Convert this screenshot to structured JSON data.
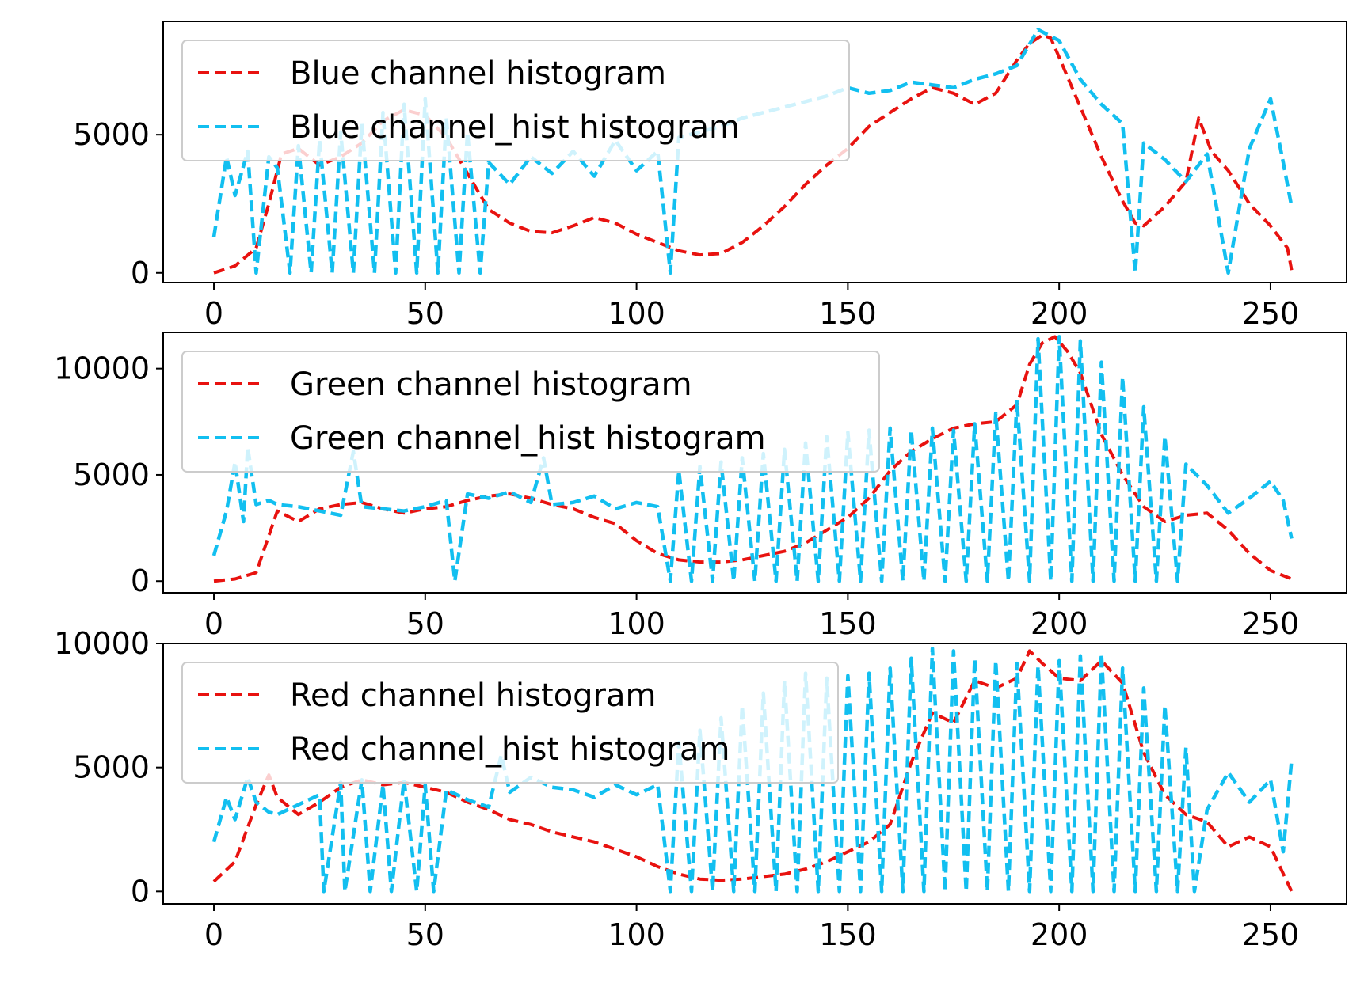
{
  "chart_data": [
    {
      "type": "line",
      "title": "",
      "xlabel": "",
      "ylabel": "",
      "xlim": [
        -12,
        268
      ],
      "ylim": [
        -350,
        9100
      ],
      "xticks": [
        0,
        50,
        100,
        150,
        200,
        250
      ],
      "xtick_labels": [
        "0",
        "50",
        "100",
        "150",
        "200",
        "250"
      ],
      "yticks": [
        0,
        5000
      ],
      "ytick_labels": [
        "0",
        "5000"
      ],
      "grid": false,
      "legend_location": "upper left",
      "series": [
        {
          "name": "Blue channel histogram",
          "color": "#e8120f",
          "style": "dashed",
          "x": [
            0,
            5,
            10,
            13,
            16,
            20,
            25,
            30,
            35,
            40,
            45,
            50,
            55,
            60,
            65,
            70,
            75,
            80,
            85,
            90,
            95,
            100,
            105,
            110,
            115,
            120,
            125,
            130,
            135,
            140,
            145,
            150,
            155,
            160,
            165,
            170,
            175,
            180,
            185,
            190,
            193,
            196,
            198,
            200,
            205,
            210,
            215,
            218,
            220,
            225,
            230,
            233,
            236,
            240,
            245,
            250,
            254,
            255
          ],
          "y": [
            0,
            250,
            900,
            2500,
            4300,
            4500,
            3900,
            4200,
            4700,
            5500,
            5900,
            5700,
            4900,
            3600,
            2300,
            1800,
            1500,
            1450,
            1700,
            2000,
            1800,
            1400,
            1100,
            800,
            650,
            700,
            1100,
            1700,
            2400,
            3200,
            3900,
            4500,
            5300,
            5800,
            6300,
            6700,
            6500,
            6100,
            6500,
            7700,
            8300,
            8600,
            8500,
            7800,
            6000,
            4200,
            2600,
            1800,
            1700,
            2400,
            3300,
            5600,
            4400,
            3700,
            2500,
            1700,
            900,
            100
          ]
        },
        {
          "name": "Blue channel_hist histogram",
          "color": "#12bff0",
          "style": "dashed",
          "x": [
            0,
            3,
            5,
            8,
            10,
            13,
            15,
            18,
            20,
            23,
            25,
            28,
            30,
            33,
            35,
            38,
            40,
            43,
            45,
            48,
            50,
            53,
            55,
            58,
            60,
            63,
            65,
            70,
            75,
            80,
            85,
            90,
            95,
            100,
            105,
            108,
            110,
            115,
            120,
            125,
            130,
            135,
            140,
            145,
            150,
            155,
            160,
            165,
            170,
            175,
            180,
            185,
            190,
            195,
            200,
            205,
            210,
            215,
            218,
            220,
            225,
            230,
            235,
            240,
            245,
            250,
            253,
            255
          ],
          "y": [
            1300,
            4200,
            2800,
            4400,
            0,
            4200,
            3800,
            0,
            4600,
            0,
            4800,
            0,
            5100,
            0,
            5400,
            0,
            5800,
            0,
            6100,
            0,
            6300,
            0,
            5600,
            0,
            5100,
            0,
            4000,
            3200,
            4200,
            3600,
            4400,
            3500,
            4800,
            3700,
            4400,
            0,
            4900,
            5100,
            5300,
            5600,
            5800,
            6000,
            6200,
            6400,
            6700,
            6500,
            6600,
            6900,
            6800,
            6700,
            7000,
            7200,
            7500,
            8800,
            8400,
            7000,
            6100,
            5400,
            0,
            4700,
            4100,
            3300,
            4300,
            0,
            4500,
            6300,
            4000,
            2400
          ]
        }
      ]
    },
    {
      "type": "line",
      "title": "",
      "xlabel": "",
      "ylabel": "",
      "xlim": [
        -12,
        268
      ],
      "ylim": [
        -550,
        11700
      ],
      "xticks": [
        0,
        50,
        100,
        150,
        200,
        250
      ],
      "xtick_labels": [
        "0",
        "50",
        "100",
        "150",
        "200",
        "250"
      ],
      "yticks": [
        0,
        5000,
        10000
      ],
      "ytick_labels": [
        "0",
        "5000",
        "10000"
      ],
      "grid": false,
      "legend_location": "upper left",
      "series": [
        {
          "name": "Green channel histogram",
          "color": "#e8120f",
          "style": "dashed",
          "x": [
            0,
            5,
            10,
            15,
            20,
            25,
            30,
            35,
            40,
            45,
            50,
            55,
            60,
            65,
            70,
            75,
            80,
            85,
            90,
            95,
            100,
            105,
            110,
            115,
            120,
            125,
            130,
            135,
            140,
            145,
            150,
            155,
            160,
            165,
            170,
            175,
            180,
            185,
            190,
            193,
            196,
            199,
            202,
            205,
            210,
            215,
            220,
            225,
            230,
            235,
            240,
            245,
            250,
            255
          ],
          "y": [
            0,
            100,
            400,
            3300,
            2800,
            3400,
            3600,
            3700,
            3400,
            3200,
            3400,
            3500,
            3800,
            4000,
            4100,
            3900,
            3600,
            3400,
            3000,
            2700,
            1900,
            1300,
            1000,
            900,
            900,
            1000,
            1200,
            1400,
            1800,
            2400,
            3000,
            3900,
            5200,
            6100,
            6700,
            7200,
            7400,
            7500,
            8300,
            10200,
            11200,
            11500,
            10800,
            9800,
            6900,
            5000,
            3500,
            2800,
            3100,
            3200,
            2400,
            1300,
            500,
            100
          ]
        },
        {
          "name": "Green channel_hist histogram",
          "color": "#12bff0",
          "style": "dashed",
          "x": [
            0,
            3,
            5,
            7,
            8,
            10,
            13,
            15,
            20,
            25,
            30,
            33,
            35,
            40,
            45,
            50,
            55,
            57,
            60,
            65,
            70,
            75,
            78,
            80,
            85,
            90,
            95,
            100,
            105,
            108,
            110,
            113,
            115,
            118,
            120,
            123,
            125,
            128,
            130,
            133,
            135,
            138,
            140,
            143,
            145,
            148,
            150,
            153,
            155,
            158,
            160,
            163,
            165,
            168,
            170,
            173,
            175,
            178,
            180,
            183,
            185,
            188,
            190,
            193,
            195,
            198,
            200,
            203,
            205,
            208,
            210,
            213,
            215,
            218,
            220,
            223,
            225,
            228,
            230,
            235,
            240,
            245,
            250,
            253,
            255
          ],
          "y": [
            1200,
            3300,
            5600,
            2800,
            6300,
            3600,
            3800,
            3600,
            3500,
            3300,
            3100,
            6100,
            3500,
            3400,
            3300,
            3500,
            3800,
            0,
            4100,
            3900,
            4200,
            3700,
            5800,
            3600,
            3700,
            4000,
            3400,
            3700,
            3500,
            0,
            5200,
            0,
            5400,
            0,
            5600,
            0,
            5800,
            0,
            6000,
            0,
            6200,
            0,
            6500,
            0,
            6800,
            0,
            7000,
            0,
            7100,
            0,
            7200,
            0,
            7100,
            0,
            7200,
            0,
            7100,
            0,
            7400,
            0,
            7900,
            0,
            8500,
            0,
            11400,
            0,
            11500,
            0,
            11300,
            0,
            10300,
            0,
            9600,
            0,
            8200,
            0,
            6800,
            0,
            5500,
            4500,
            3200,
            3900,
            4700,
            3800,
            2000
          ]
        }
      ]
    },
    {
      "type": "line",
      "title": "",
      "xlabel": "",
      "ylabel": "",
      "xlim": [
        -12,
        268
      ],
      "ylim": [
        -500,
        10000
      ],
      "xticks": [
        0,
        50,
        100,
        150,
        200,
        250
      ],
      "xtick_labels": [
        "0",
        "50",
        "100",
        "150",
        "200",
        "250"
      ],
      "yticks": [
        0,
        5000,
        10000
      ],
      "ytick_labels": [
        "0",
        "5000",
        "10000"
      ],
      "grid": false,
      "legend_location": "upper left",
      "series": [
        {
          "name": "Red channel histogram",
          "color": "#e8120f",
          "style": "dashed",
          "x": [
            0,
            5,
            10,
            13,
            15,
            20,
            25,
            30,
            35,
            40,
            45,
            50,
            55,
            60,
            65,
            70,
            75,
            80,
            85,
            90,
            95,
            100,
            105,
            110,
            115,
            120,
            125,
            130,
            135,
            140,
            145,
            150,
            155,
            160,
            165,
            170,
            175,
            180,
            185,
            190,
            193,
            196,
            200,
            205,
            210,
            215,
            220,
            225,
            230,
            235,
            240,
            245,
            250,
            255
          ],
          "y": [
            400,
            1200,
            3500,
            4700,
            3800,
            3100,
            3600,
            4200,
            4500,
            4300,
            4400,
            4200,
            4000,
            3600,
            3300,
            2900,
            2700,
            2400,
            2200,
            2000,
            1700,
            1400,
            1000,
            700,
            500,
            450,
            500,
            600,
            700,
            900,
            1200,
            1600,
            2000,
            2700,
            5200,
            7200,
            6800,
            8500,
            8200,
            8600,
            9700,
            9200,
            8600,
            8500,
            9300,
            8400,
            5600,
            3900,
            3100,
            2800,
            1800,
            2200,
            1800,
            0
          ]
        },
        {
          "name": "Red channel_hist histogram",
          "color": "#12bff0",
          "style": "dashed",
          "x": [
            0,
            3,
            5,
            8,
            10,
            13,
            15,
            20,
            25,
            26,
            30,
            31,
            35,
            37,
            40,
            42,
            45,
            48,
            50,
            52,
            55,
            60,
            65,
            68,
            70,
            75,
            80,
            85,
            90,
            95,
            100,
            105,
            108,
            110,
            113,
            115,
            118,
            120,
            123,
            125,
            128,
            130,
            133,
            135,
            138,
            140,
            143,
            145,
            148,
            150,
            153,
            155,
            158,
            160,
            163,
            165,
            168,
            170,
            173,
            175,
            178,
            180,
            183,
            185,
            188,
            190,
            193,
            195,
            198,
            200,
            203,
            205,
            208,
            210,
            213,
            215,
            218,
            220,
            223,
            225,
            228,
            230,
            232,
            235,
            240,
            245,
            250,
            253,
            255
          ],
          "y": [
            2000,
            3800,
            2900,
            4600,
            3600,
            3200,
            3100,
            3500,
            3900,
            0,
            4400,
            0,
            4500,
            0,
            4300,
            0,
            4500,
            0,
            4300,
            0,
            4100,
            3700,
            3400,
            5500,
            4000,
            4600,
            4200,
            4100,
            3800,
            4300,
            3900,
            4300,
            0,
            6000,
            0,
            6500,
            0,
            7000,
            0,
            7500,
            0,
            8000,
            0,
            8500,
            0,
            8800,
            0,
            8600,
            0,
            8700,
            0,
            8800,
            0,
            9000,
            0,
            9400,
            0,
            9800,
            0,
            9700,
            0,
            9400,
            0,
            9300,
            0,
            9200,
            0,
            9100,
            0,
            9300,
            0,
            9500,
            0,
            9600,
            0,
            9000,
            0,
            8200,
            0,
            7500,
            0,
            5800,
            0,
            3300,
            4800,
            3600,
            4500,
            1600,
            5300
          ]
        }
      ]
    }
  ]
}
